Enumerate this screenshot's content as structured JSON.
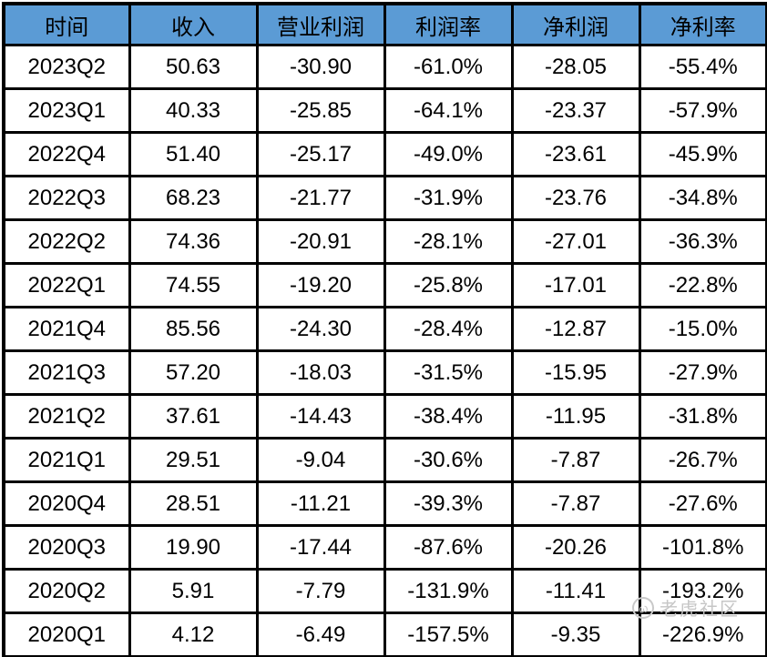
{
  "chart_data": {
    "type": "table",
    "title": "",
    "headers": [
      "时间",
      "收入",
      "营业利润",
      "利润率",
      "净利润",
      "净利率"
    ],
    "rows": [
      [
        "2023Q2",
        "50.63",
        "-30.90",
        "-61.0%",
        "-28.05",
        "-55.4%"
      ],
      [
        "2023Q1",
        "40.33",
        "-25.85",
        "-64.1%",
        "-23.37",
        "-57.9%"
      ],
      [
        "2022Q4",
        "51.40",
        "-25.17",
        "-49.0%",
        "-23.61",
        "-45.9%"
      ],
      [
        "2022Q3",
        "68.23",
        "-21.77",
        "-31.9%",
        "-23.76",
        "-34.8%"
      ],
      [
        "2022Q2",
        "74.36",
        "-20.91",
        "-28.1%",
        "-27.01",
        "-36.3%"
      ],
      [
        "2022Q1",
        "74.55",
        "-19.20",
        "-25.8%",
        "-17.01",
        "-22.8%"
      ],
      [
        "2021Q4",
        "85.56",
        "-24.30",
        "-28.4%",
        "-12.87",
        "-15.0%"
      ],
      [
        "2021Q3",
        "57.20",
        "-18.03",
        "-31.5%",
        "-15.95",
        "-27.9%"
      ],
      [
        "2021Q2",
        "37.61",
        "-14.43",
        "-38.4%",
        "-11.95",
        "-31.8%"
      ],
      [
        "2021Q1",
        "29.51",
        "-9.04",
        "-30.6%",
        "-7.87",
        "-26.7%"
      ],
      [
        "2020Q4",
        "28.51",
        "-11.21",
        "-39.3%",
        "-7.87",
        "-27.6%"
      ],
      [
        "2020Q3",
        "19.90",
        "-17.44",
        "-87.6%",
        "-20.26",
        "-101.8%"
      ],
      [
        "2020Q2",
        "5.91",
        "-7.79",
        "-131.9%",
        "-11.41",
        "-193.2%"
      ],
      [
        "2020Q1",
        "4.12",
        "-6.49",
        "-157.5%",
        "-9.35",
        "-226.9%"
      ]
    ]
  },
  "watermark": {
    "text": "老虎社区"
  },
  "colors": {
    "header_bg": "#5B9BD5",
    "border": "#000000",
    "text": "#000000",
    "watermark": "#C6C6C6"
  }
}
